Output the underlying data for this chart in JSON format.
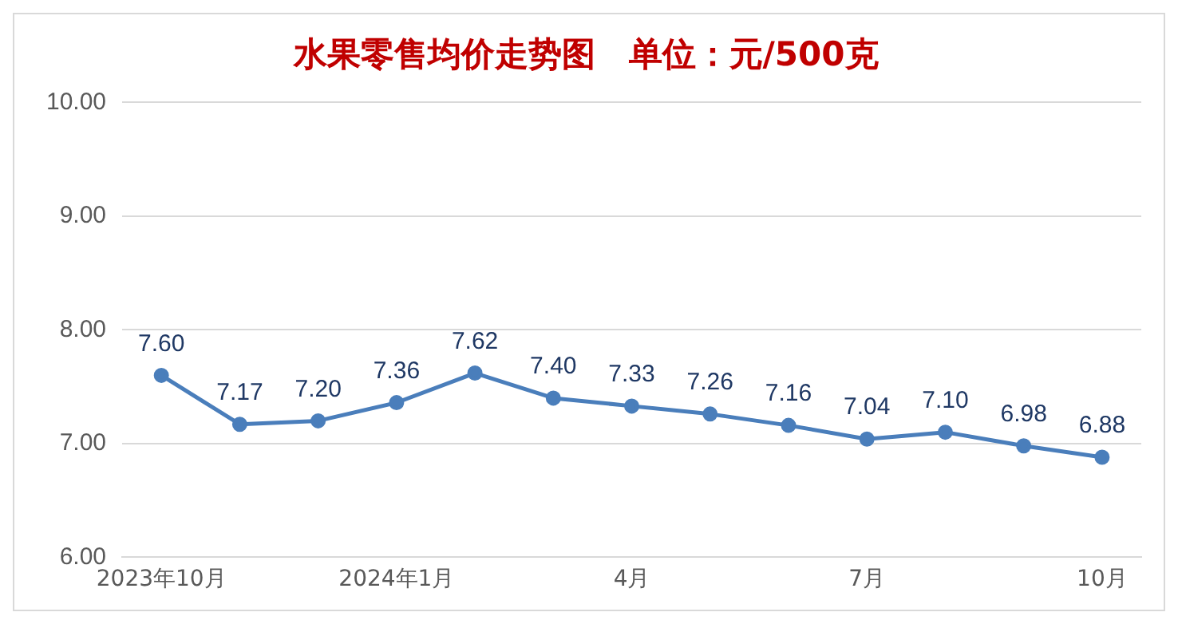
{
  "chart_data": {
    "type": "line",
    "title": "水果零售均价走势图　单位：元/500克",
    "categories": [
      "2023年10月",
      null,
      null,
      "2024年1月",
      null,
      null,
      "4月",
      null,
      null,
      "7月",
      null,
      null,
      "10月"
    ],
    "series": [
      {
        "color": "#4a7ebb",
        "values": [
          7.6,
          7.17,
          7.2,
          7.36,
          7.62,
          7.4,
          7.33,
          7.26,
          7.16,
          7.04,
          7.1,
          6.98,
          6.88
        ],
        "value_labels": [
          "7.60",
          "7.17",
          "7.20",
          "7.36",
          "7.62",
          "7.40",
          "7.33",
          "7.26",
          "7.16",
          "7.04",
          "7.10",
          "6.98",
          "6.88"
        ]
      }
    ],
    "ylim": [
      6,
      10
    ],
    "yticks": [
      {
        "value": 6,
        "label": "6.00"
      },
      {
        "value": 7,
        "label": "7.00"
      },
      {
        "value": 8,
        "label": "8.00"
      },
      {
        "value": 9,
        "label": "9.00"
      },
      {
        "value": 10,
        "label": "10.00"
      }
    ],
    "grid": "y",
    "marker": "circle",
    "line_style": "solid",
    "legend": false
  }
}
